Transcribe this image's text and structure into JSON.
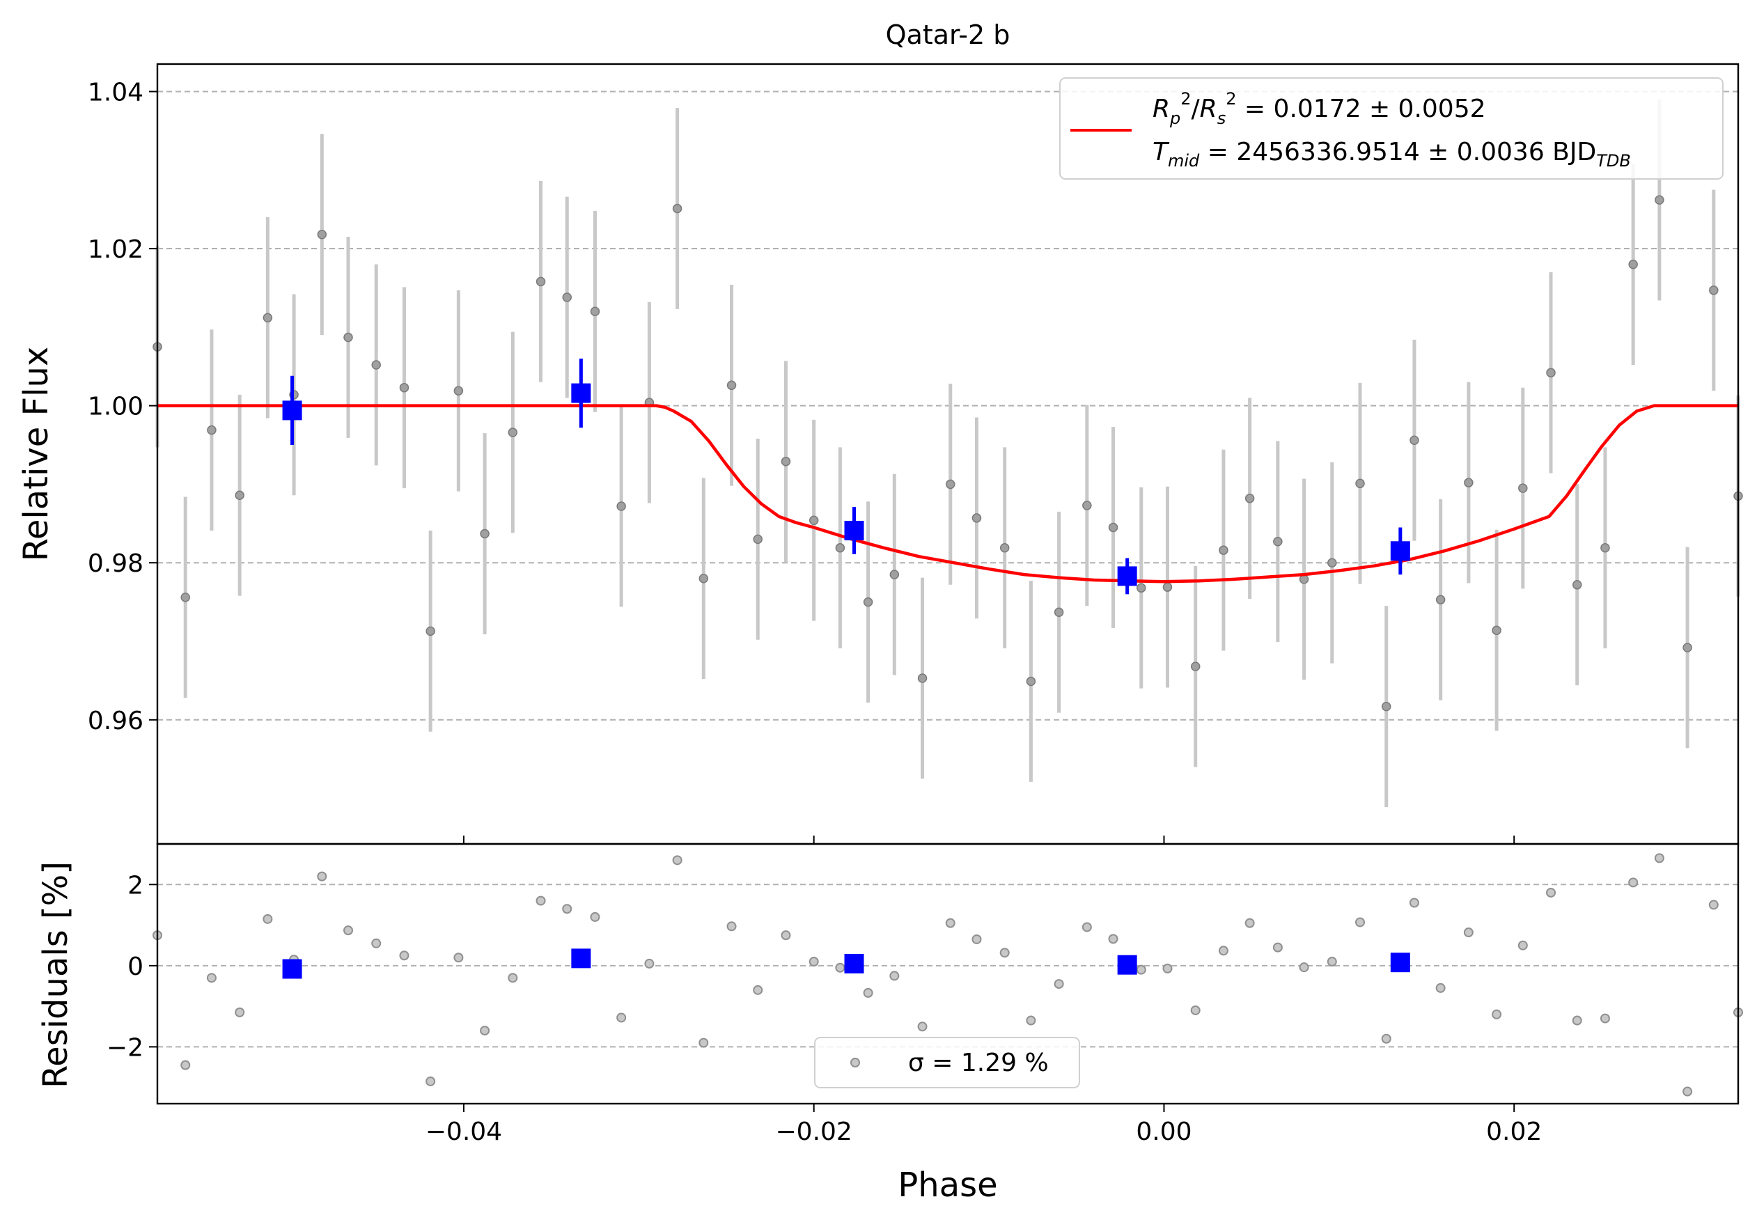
{
  "chart_data": [
    {
      "type": "scatter",
      "title": "Qatar-2 b",
      "xlabel": "",
      "ylabel": "Relative Flux",
      "xlim": [
        -0.0575,
        0.0328
      ],
      "ylim": [
        0.9442,
        1.0435
      ],
      "x_ticks": [
        -0.04,
        -0.02,
        0.0,
        0.02
      ],
      "y_ticks": [
        0.96,
        0.98,
        1.0,
        1.02,
        1.04
      ],
      "y_tick_labels": [
        "0.96",
        "0.98",
        "1.00",
        "1.02",
        "1.04"
      ],
      "grid": "horizontal dashed",
      "legend_position": "top-right",
      "legend": {
        "line1": "Rp²/Rs² = 0.0172 ± 0.0052",
        "line2": "Tmid = 2456336.9514 ± 0.0036 BJD_TDB"
      },
      "series": [
        {
          "name": "",
          "kind": "data",
          "color": "#808080",
          "errorbar_color": "#c8c8c8",
          "x": [
            -0.0575,
            -0.0559,
            -0.0544,
            -0.0528,
            -0.0512,
            -0.0497,
            -0.0481,
            -0.0466,
            -0.045,
            -0.0434,
            -0.0419,
            -0.0403,
            -0.0388,
            -0.0372,
            -0.0356,
            -0.0341,
            -0.0325,
            -0.031,
            -0.0294,
            -0.0278,
            -0.0263,
            -0.0247,
            -0.0232,
            -0.0216,
            -0.02,
            -0.0185,
            -0.0169,
            -0.0154,
            -0.0138,
            -0.0122,
            -0.0107,
            -0.0091,
            -0.0076,
            -0.006,
            -0.0044,
            -0.0029,
            -0.0013,
            0.0002,
            0.0018,
            0.0034,
            0.0049,
            0.0065,
            0.008,
            0.0096,
            0.0112,
            0.0127,
            0.0143,
            0.0158,
            0.0174,
            0.019,
            0.0205,
            0.0221,
            0.0236,
            0.0252,
            0.0268,
            0.0283,
            0.0299,
            0.0314,
            0.0328
          ],
          "y": [
            1.0075,
            0.9756,
            0.9969,
            0.9886,
            1.0112,
            1.0014,
            1.0218,
            1.0087,
            1.0052,
            1.0023,
            0.9713,
            1.0019,
            0.9837,
            0.9966,
            1.0158,
            1.0138,
            1.012,
            0.9872,
            1.0004,
            1.0251,
            0.978,
            1.0026,
            0.983,
            0.9929,
            0.9854,
            0.9819,
            0.975,
            0.9785,
            0.9653,
            0.99,
            0.9857,
            0.9819,
            0.9649,
            0.9737,
            0.9873,
            0.9845,
            0.9768,
            0.9769,
            0.9668,
            0.9816,
            0.9882,
            0.9827,
            0.9779,
            0.98,
            0.9901,
            0.9617,
            0.9956,
            0.9753,
            0.9902,
            0.9714,
            0.9895,
            1.0042,
            0.9772,
            0.9819,
            1.018,
            1.0262,
            0.9692,
            1.0147,
            0.9885
          ],
          "yerr": 0.0128
        },
        {
          "name": "",
          "kind": "binned",
          "color": "#0000ff",
          "x": [
            -0.0498,
            -0.0333,
            -0.0177,
            -0.0021,
            0.0135
          ],
          "y": [
            0.9994,
            1.0016,
            0.9841,
            0.9783,
            0.9815
          ],
          "yerr": [
            0.0044,
            0.0044,
            0.003,
            0.0023,
            0.003
          ]
        },
        {
          "name": "Rp²/Rs² = 0.0172 ± 0.0052",
          "kind": "model",
          "color": "#ff0000",
          "x": [
            -0.0575,
            -0.029,
            -0.0285,
            -0.028,
            -0.027,
            -0.026,
            -0.025,
            -0.024,
            -0.023,
            -0.022,
            -0.021,
            -0.02,
            -0.018,
            -0.016,
            -0.014,
            -0.012,
            -0.01,
            -0.008,
            -0.006,
            -0.004,
            -0.002,
            0.0,
            0.002,
            0.004,
            0.006,
            0.008,
            0.01,
            0.012,
            0.014,
            0.016,
            0.018,
            0.02,
            0.021,
            0.022,
            0.023,
            0.024,
            0.025,
            0.026,
            0.027,
            0.028,
            0.0285,
            0.029,
            0.0328
          ],
          "y": [
            1.0,
            1.0,
            0.9998,
            0.9993,
            0.998,
            0.9955,
            0.9925,
            0.9897,
            0.9875,
            0.9859,
            0.9851,
            0.9845,
            0.9831,
            0.9819,
            0.9808,
            0.98,
            0.9792,
            0.9785,
            0.9781,
            0.9778,
            0.9777,
            0.9776,
            0.9777,
            0.9779,
            0.9782,
            0.9785,
            0.979,
            0.9796,
            0.9804,
            0.9815,
            0.9828,
            0.9843,
            0.9851,
            0.9859,
            0.9885,
            0.9917,
            0.9948,
            0.9975,
            0.9993,
            1.0,
            1.0,
            1.0,
            1.0
          ]
        }
      ]
    },
    {
      "type": "scatter",
      "title": "",
      "xlabel": "Phase",
      "ylabel": "Residuals [%]",
      "xlim": [
        -0.0575,
        0.0328
      ],
      "ylim": [
        -3.4,
        3.0
      ],
      "x_ticks": [
        -0.04,
        -0.02,
        0.0,
        0.02
      ],
      "x_tick_labels": [
        "−0.04",
        "−0.02",
        "0.00",
        "0.02"
      ],
      "y_ticks": [
        -2,
        0,
        2
      ],
      "y_tick_labels": [
        "−2",
        "0",
        "2"
      ],
      "grid": "horizontal dashed",
      "legend_position": "bottom-center",
      "legend": {
        "label": "σ = 1.29 %"
      },
      "series": [
        {
          "name": "σ = 1.29 %",
          "kind": "residuals",
          "color": "#808080",
          "x": [
            -0.0575,
            -0.0559,
            -0.0544,
            -0.0528,
            -0.0512,
            -0.0497,
            -0.0481,
            -0.0466,
            -0.045,
            -0.0434,
            -0.0419,
            -0.0403,
            -0.0388,
            -0.0372,
            -0.0356,
            -0.0341,
            -0.0325,
            -0.031,
            -0.0294,
            -0.0278,
            -0.0263,
            -0.0247,
            -0.0232,
            -0.0216,
            -0.02,
            -0.0185,
            -0.0169,
            -0.0154,
            -0.0138,
            -0.0122,
            -0.0107,
            -0.0091,
            -0.0076,
            -0.006,
            -0.0044,
            -0.0029,
            -0.0013,
            0.0002,
            0.0018,
            0.0034,
            0.0049,
            0.0065,
            0.008,
            0.0096,
            0.0112,
            0.0127,
            0.0143,
            0.0158,
            0.0174,
            0.019,
            0.0205,
            0.0221,
            0.0236,
            0.0252,
            0.0268,
            0.0283,
            0.0299,
            0.0314,
            0.0328
          ],
          "y": [
            0.75,
            -2.45,
            -0.3,
            -1.15,
            1.15,
            0.15,
            2.2,
            0.87,
            0.55,
            0.25,
            -2.85,
            0.2,
            -1.6,
            -0.3,
            1.6,
            1.4,
            1.2,
            -1.28,
            0.05,
            2.6,
            -1.9,
            0.97,
            -0.6,
            0.75,
            0.1,
            -0.05,
            -0.67,
            -0.25,
            -1.5,
            1.05,
            0.65,
            0.32,
            -1.35,
            -0.45,
            0.95,
            0.66,
            -0.1,
            -0.07,
            -1.1,
            0.37,
            1.05,
            0.45,
            -0.04,
            0.1,
            1.07,
            -1.8,
            1.55,
            -0.55,
            0.82,
            -1.2,
            0.5,
            1.8,
            -1.35,
            -1.3,
            2.05,
            2.65,
            -3.1,
            1.5,
            -1.15
          ]
        },
        {
          "name": "",
          "kind": "binned-residuals",
          "color": "#0000ff",
          "x": [
            -0.0498,
            -0.0333,
            -0.0177,
            -0.0021,
            0.0135
          ],
          "y": [
            -0.08,
            0.18,
            0.05,
            0.02,
            0.08
          ]
        }
      ]
    }
  ]
}
